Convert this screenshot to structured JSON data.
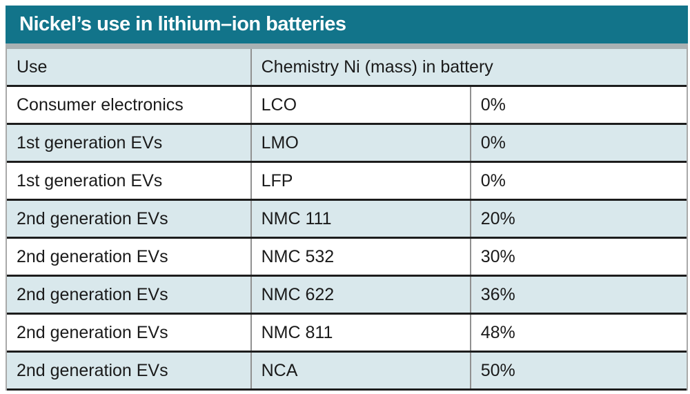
{
  "title": "Nickel’s use in lithium–ion batteries",
  "table": {
    "header": {
      "use": "Use",
      "chemistry_ni": "Chemistry Ni (mass) in battery"
    },
    "rows": [
      {
        "use": "Consumer electronics",
        "chemistry": "LCO",
        "ni_mass": "0%"
      },
      {
        "use": "1st generation EVs",
        "chemistry": "LMO",
        "ni_mass": "0%"
      },
      {
        "use": "1st generation EVs",
        "chemistry": "LFP",
        "ni_mass": "0%"
      },
      {
        "use": "2nd generation EVs",
        "chemistry": "NMC 111",
        "ni_mass": "20%"
      },
      {
        "use": "2nd generation EVs",
        "chemistry": "NMC 532",
        "ni_mass": "30%"
      },
      {
        "use": "2nd generation EVs",
        "chemistry": "NMC 622",
        "ni_mass": "36%"
      },
      {
        "use": "2nd generation EVs",
        "chemistry": "NMC 811",
        "ni_mass": "48%"
      },
      {
        "use": "2nd generation EVs",
        "chemistry": "NCA",
        "ni_mass": "50%"
      }
    ]
  },
  "colors": {
    "title_bar_bg": "#12748a",
    "title_text": "#ffffff",
    "row_alt_bg": "#d9e8ec",
    "row_bg": "#ffffff",
    "body_text": "#1a1a1a",
    "dark_line": "#1c1c1c",
    "gray_line": "#919191",
    "frame_border": "#a9a9a9",
    "frame_top": "#a9b1b3"
  },
  "chart_data": {
    "type": "table",
    "title": "Nickel’s use in lithium–ion batteries",
    "columns": [
      "Use",
      "Chemistry",
      "Ni (mass) in battery"
    ],
    "rows": [
      [
        "Consumer electronics",
        "LCO",
        "0%"
      ],
      [
        "1st generation EVs",
        "LMO",
        "0%"
      ],
      [
        "1st generation EVs",
        "LFP",
        "0%"
      ],
      [
        "2nd generation EVs",
        "NMC 111",
        "20%"
      ],
      [
        "2nd generation EVs",
        "NMC 532",
        "30%"
      ],
      [
        "2nd generation EVs",
        "NMC 622",
        "36%"
      ],
      [
        "2nd generation EVs",
        "NMC 811",
        "48%"
      ],
      [
        "2nd generation EVs",
        "NCA",
        "50%"
      ]
    ],
    "ni_mass_percent_values": [
      0,
      0,
      0,
      20,
      30,
      36,
      48,
      50
    ]
  }
}
